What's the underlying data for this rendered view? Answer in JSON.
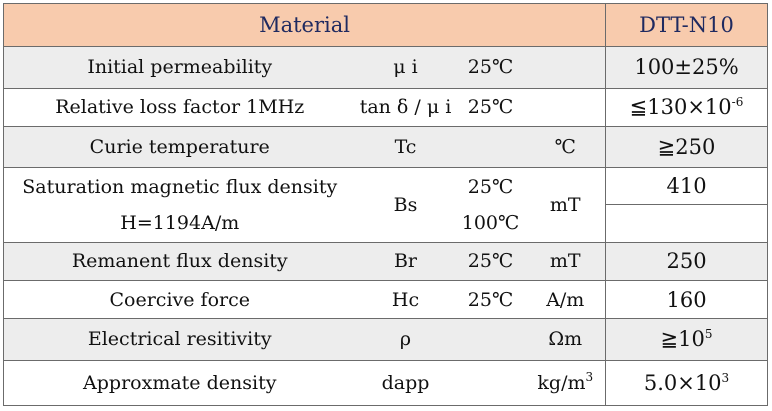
{
  "header": {
    "material": "Material",
    "grade": "DTT-N10"
  },
  "rows": [
    {
      "property": "Initial permeability",
      "symbol": "μ i",
      "condition": "25℃",
      "unit": "",
      "value": "100±25%"
    },
    {
      "property": "Relative loss factor 1MHz",
      "symbol": "tan δ / μ i",
      "condition": "25℃",
      "unit": "",
      "value_base": "≦130×10",
      "value_exp": "-6"
    },
    {
      "property": "Curie temperature",
      "symbol": "Tc",
      "condition": "",
      "unit": "℃",
      "value": "≧250"
    },
    {
      "property": "Saturation magnetic flux density",
      "property_line2": "H=1194A/m",
      "symbol": "Bs",
      "condition": "25℃",
      "condition_line2": "100℃",
      "unit": "mT",
      "value": "410",
      "value_line2": ""
    },
    {
      "property": "Remanent flux density",
      "symbol": "Br",
      "condition": "25℃",
      "unit": "mT",
      "value": "250"
    },
    {
      "property": "Coercive force",
      "symbol": "Hc",
      "condition": "25℃",
      "unit": "A/m",
      "value": "160"
    },
    {
      "property": "Electrical resitivity",
      "symbol": "ρ",
      "condition": "",
      "unit": "Ωm",
      "value_base": "≧10",
      "value_exp": "5"
    },
    {
      "property": "Approxmate density",
      "symbol": "dapp",
      "condition": "",
      "unit_base": "kg/m",
      "unit_exp": "3",
      "value_base": "5.0×10",
      "value_exp": "3"
    }
  ]
}
